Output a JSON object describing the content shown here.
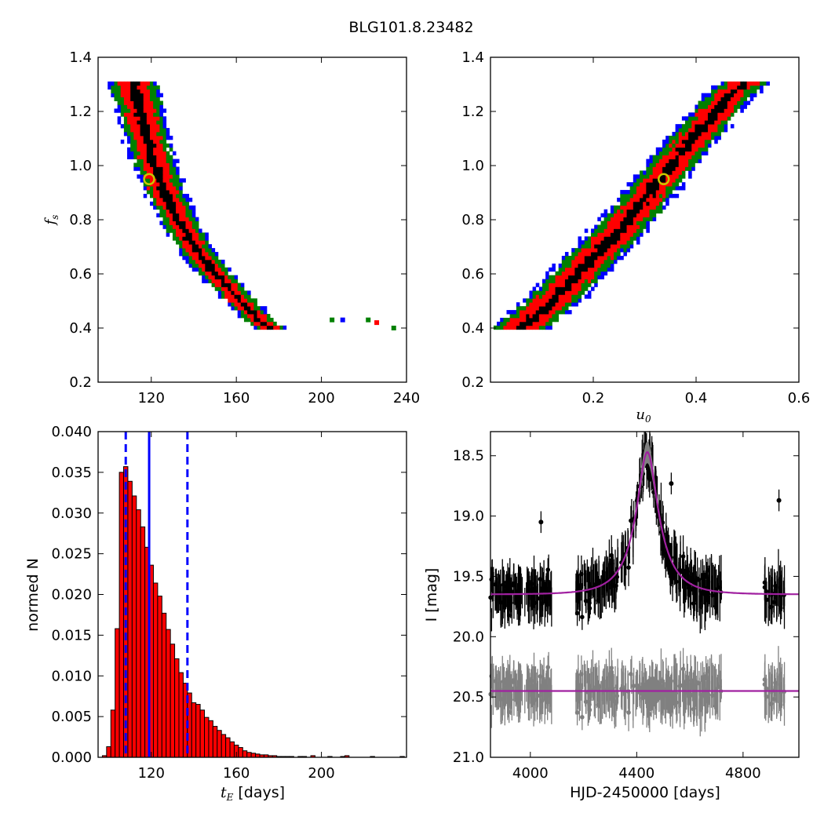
{
  "figure": {
    "title": "BLG101.8.23482"
  },
  "colors": {
    "one_sigma": "#000000",
    "two_sigma": "#ff0000",
    "three_sigma": "#008000",
    "outer": "#0000ff",
    "marker": "#c8c800",
    "hist_fill": "#ff0000",
    "median_line": "#0000ff",
    "model": "#a020a0",
    "data": "#000000",
    "residual": "#808080"
  },
  "chart_data": [
    {
      "type": "heatmap",
      "panel": "top-left",
      "x_var": "t_E",
      "y_var": "f_s",
      "xlabel": "",
      "ylabel": "f_s",
      "xlim": [
        95,
        240
      ],
      "ylim": [
        0.2,
        1.4
      ],
      "xticks": [
        120,
        160,
        200,
        240
      ],
      "xtick_labels": [
        "120",
        "160",
        "200",
        "240"
      ],
      "yticks": [
        0.2,
        0.4,
        0.6,
        0.8,
        1.0,
        1.2,
        1.4
      ],
      "ytick_labels": [
        "0.2",
        "0.4",
        "0.6",
        "0.8",
        "1.0",
        "1.2",
        "1.4"
      ],
      "levels": [
        "1-sigma",
        "2-sigma",
        "3-sigma",
        "outer"
      ],
      "ridge": [
        [
          111,
          1.31
        ],
        [
          115,
          1.2
        ],
        [
          118,
          1.1
        ],
        [
          122,
          1.0
        ],
        [
          126,
          0.9
        ],
        [
          133,
          0.8
        ],
        [
          140,
          0.7
        ],
        [
          150,
          0.6
        ],
        [
          162,
          0.5
        ],
        [
          172,
          0.42
        ],
        [
          178,
          0.39
        ]
      ],
      "best_fit": {
        "x": 119,
        "y": 0.95
      },
      "islands": [
        [
          205,
          0.43
        ],
        [
          210,
          0.43
        ],
        [
          222,
          0.43
        ],
        [
          226,
          0.42
        ],
        [
          234,
          0.4
        ]
      ]
    },
    {
      "type": "heatmap",
      "panel": "top-right",
      "x_var": "u_0",
      "y_var": "f_s",
      "xlabel": "u_0",
      "ylabel": "",
      "xlim": [
        0.0,
        0.6
      ],
      "ylim": [
        0.2,
        1.4
      ],
      "xticks": [
        0.2,
        0.4,
        0.6
      ],
      "xtick_labels": [
        "0.2",
        "0.4",
        "0.6"
      ],
      "yticks": [
        0.2,
        0.4,
        0.6,
        0.8,
        1.0,
        1.2,
        1.4
      ],
      "ytick_labels": [
        "0.2",
        "0.4",
        "0.6",
        "0.8",
        "1.0",
        "1.2",
        "1.4"
      ],
      "levels": [
        "1-sigma",
        "2-sigma",
        "3-sigma",
        "outer"
      ],
      "ridge": [
        [
          0.06,
          0.4
        ],
        [
          0.12,
          0.5
        ],
        [
          0.18,
          0.62
        ],
        [
          0.24,
          0.74
        ],
        [
          0.29,
          0.85
        ],
        [
          0.33,
          0.95
        ],
        [
          0.38,
          1.07
        ],
        [
          0.43,
          1.18
        ],
        [
          0.47,
          1.27
        ],
        [
          0.5,
          1.31
        ]
      ],
      "best_fit": {
        "x": 0.337,
        "y": 0.95
      }
    },
    {
      "type": "bar",
      "panel": "bottom-left",
      "xlabel": "t_E [days]",
      "xlabel_text": "[days]",
      "ylabel": "normed N",
      "xlim": [
        95,
        240
      ],
      "ylim": [
        0.0,
        0.04
      ],
      "xticks": [
        120,
        160,
        200
      ],
      "xtick_labels": [
        "120",
        "160",
        "200"
      ],
      "yticks": [
        0.0,
        0.005,
        0.01,
        0.015,
        0.02,
        0.025,
        0.03,
        0.035,
        0.04
      ],
      "ytick_labels": [
        "0.000",
        "0.005",
        "0.010",
        "0.015",
        "0.020",
        "0.025",
        "0.030",
        "0.035",
        "0.040"
      ],
      "bin_start": 97,
      "bin_width": 2,
      "values": [
        0.0002,
        0.0013,
        0.0058,
        0.0158,
        0.035,
        0.0357,
        0.0339,
        0.0321,
        0.0304,
        0.0283,
        0.0258,
        0.0236,
        0.0214,
        0.0198,
        0.0177,
        0.0157,
        0.0139,
        0.0121,
        0.0104,
        0.0091,
        0.0079,
        0.0067,
        0.0065,
        0.0058,
        0.0049,
        0.0045,
        0.0038,
        0.0033,
        0.0028,
        0.0024,
        0.0019,
        0.0015,
        0.0012,
        0.0008,
        0.0006,
        0.0005,
        0.0004,
        0.0003,
        0.0003,
        0.0002,
        0.0002,
        0.0001,
        0.0001,
        0.0001,
        0.0001,
        0.0,
        0.0001,
        0.0001,
        0.0,
        0.0002,
        0.0,
        0.0,
        0.0,
        0.0001,
        0.0,
        0.0,
        0.0001,
        0.0002,
        0.0,
        0.0,
        0.0,
        0.0,
        0.0,
        0.0001,
        0.0,
        0.0,
        0.0,
        0.0,
        0.0,
        0.0,
        0.0001,
        0.0
      ],
      "median": 119,
      "interval": [
        108,
        137
      ]
    },
    {
      "type": "scatter",
      "panel": "bottom-right",
      "xlabel": "HJD-2450000 [days]",
      "ylabel": "I [mag]",
      "xlim": [
        3850,
        5010
      ],
      "ylim": [
        21.0,
        18.3
      ],
      "y_inverted": true,
      "xticks": [
        4000,
        4400,
        4800
      ],
      "xtick_labels": [
        "4000",
        "4400",
        "4800"
      ],
      "yticks": [
        18.5,
        19.0,
        19.5,
        20.0,
        20.5,
        21.0
      ],
      "ytick_labels": [
        "18.5",
        "19.0",
        "19.5",
        "20.0",
        "20.5",
        "21.0"
      ],
      "model": {
        "t0": 4440,
        "tE": 119,
        "u0": 0.337,
        "baseline": 19.65,
        "peak": 18.47
      },
      "residual_offset": 20.45,
      "seasons": [
        [
          3850,
          4080
        ],
        [
          4170,
          4330
        ],
        [
          4340,
          4720
        ],
        [
          4880,
          4960
        ]
      ],
      "outliers": [
        [
          4480,
          19.0
        ],
        [
          4530,
          18.73
        ],
        [
          4935,
          18.87
        ],
        [
          4040,
          19.05
        ]
      ]
    }
  ]
}
